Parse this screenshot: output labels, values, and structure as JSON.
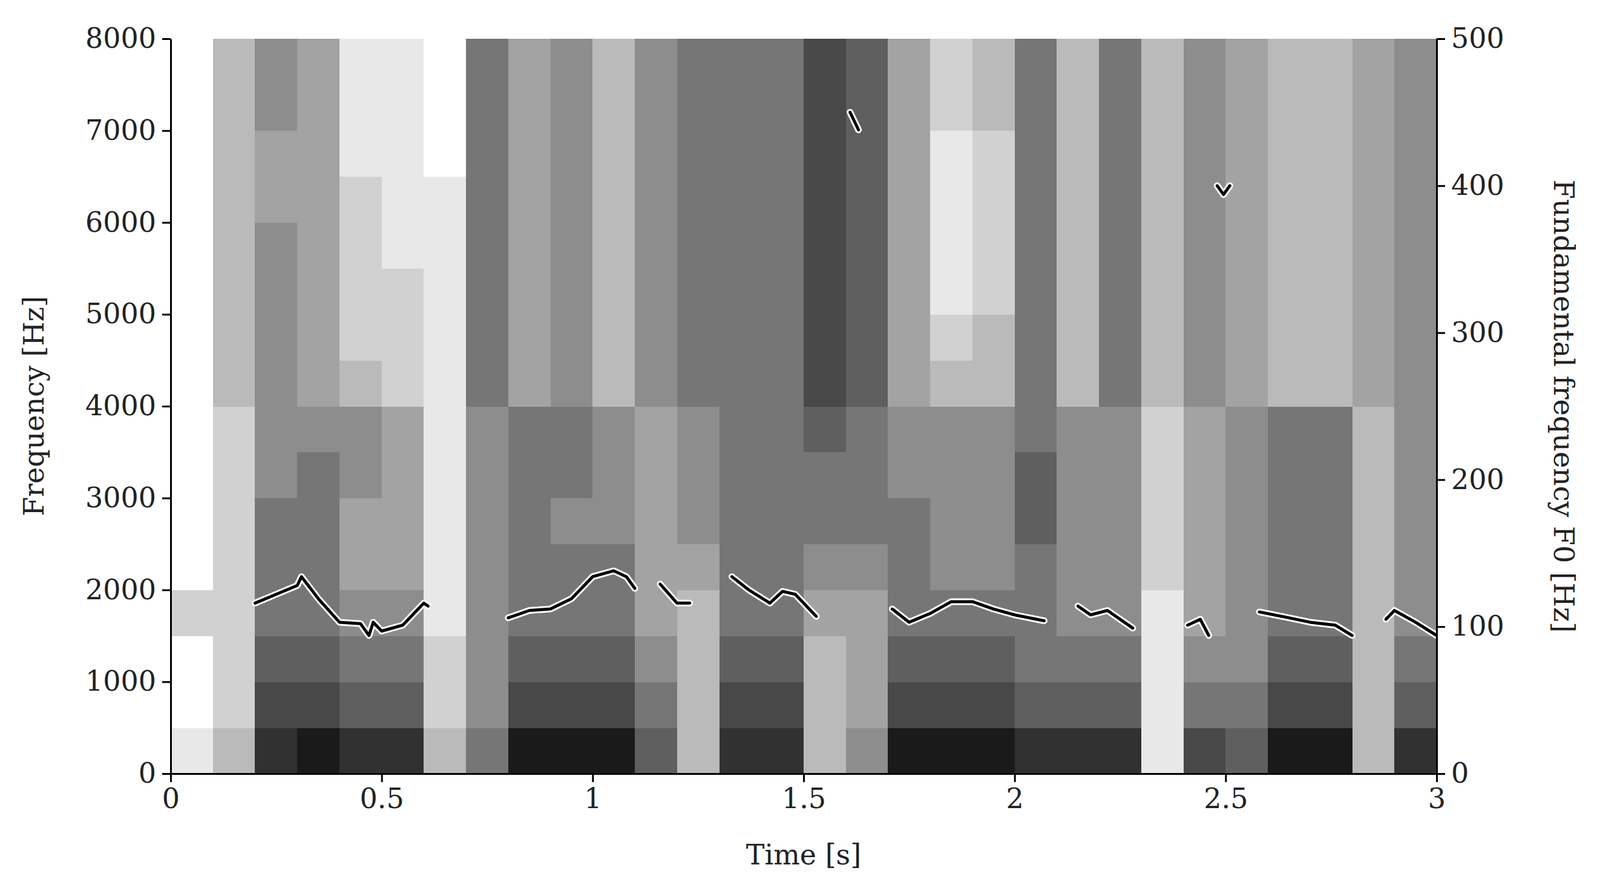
{
  "chart_data": {
    "type": "spectrogram",
    "xlabel": "Time [s]",
    "ylabel": "Frequency [Hz]",
    "y2label": "Fundamental frequency F0 [Hz]",
    "xlim": [
      0,
      3
    ],
    "xticks": [
      0,
      0.5,
      1,
      1.5,
      2,
      2.5,
      3
    ],
    "ylim": [
      0,
      8000
    ],
    "yticks": [
      0,
      1000,
      2000,
      3000,
      4000,
      5000,
      6000,
      7000,
      8000
    ],
    "y2lim": [
      0,
      500
    ],
    "y2ticks": [
      0,
      100,
      200,
      300,
      400,
      500
    ],
    "spectrogram": {
      "time_bins": [
        0,
        0.1,
        0.2,
        0.3,
        0.4,
        0.5,
        0.6,
        0.7,
        0.8,
        0.9,
        1,
        1.1,
        1.2,
        1.3,
        1.4,
        1.5,
        1.6,
        1.7,
        1.8,
        1.9,
        2,
        2.1,
        2.2,
        2.3,
        2.4,
        2.5,
        2.6,
        2.7,
        2.8,
        2.9,
        3
      ],
      "freq_bins": [
        0,
        500,
        1000,
        1500,
        2000,
        2500,
        3000,
        3500,
        4000,
        4500,
        5000,
        5500,
        6000,
        6500,
        7000,
        7500,
        8000
      ],
      "zlim": [
        0,
        10
      ],
      "z": [
        [
          1,
          0,
          0,
          2,
          0,
          0,
          0,
          0,
          0,
          0,
          0,
          0,
          0,
          0,
          0,
          0
        ],
        [
          3,
          2,
          2,
          2,
          2,
          2,
          2,
          2,
          3,
          3,
          3,
          3,
          3,
          3,
          3,
          3
        ],
        [
          9,
          8,
          7,
          6,
          6,
          6,
          5,
          5,
          5,
          5,
          5,
          5,
          4,
          4,
          5,
          5
        ],
        [
          10,
          8,
          7,
          6,
          6,
          6,
          6,
          5,
          4,
          4,
          4,
          4,
          4,
          4,
          4,
          4
        ],
        [
          9,
          7,
          6,
          5,
          4,
          4,
          5,
          5,
          3,
          2,
          2,
          2,
          2,
          1,
          1,
          1
        ],
        [
          9,
          7,
          6,
          5,
          4,
          4,
          4,
          4,
          2,
          2,
          2,
          1,
          1,
          1,
          1,
          1
        ],
        [
          3,
          2,
          2,
          1,
          1,
          1,
          1,
          1,
          1,
          1,
          1,
          1,
          1,
          0,
          0,
          0
        ],
        [
          6,
          5,
          5,
          5,
          5,
          5,
          5,
          5,
          6,
          6,
          6,
          6,
          6,
          6,
          6,
          6
        ],
        [
          10,
          8,
          7,
          6,
          6,
          6,
          6,
          6,
          4,
          4,
          4,
          4,
          4,
          4,
          4,
          4
        ],
        [
          10,
          8,
          7,
          6,
          6,
          5,
          6,
          6,
          5,
          5,
          5,
          5,
          5,
          5,
          5,
          5
        ],
        [
          10,
          8,
          7,
          6,
          6,
          5,
          5,
          5,
          3,
          3,
          3,
          3,
          3,
          3,
          3,
          3
        ],
        [
          7,
          6,
          5,
          4,
          4,
          4,
          4,
          4,
          5,
          5,
          5,
          5,
          5,
          5,
          5,
          5
        ],
        [
          3,
          3,
          3,
          3,
          4,
          5,
          5,
          5,
          6,
          6,
          6,
          6,
          6,
          6,
          6,
          6
        ],
        [
          9,
          8,
          7,
          6,
          6,
          6,
          6,
          6,
          6,
          6,
          6,
          6,
          6,
          6,
          6,
          6
        ],
        [
          9,
          8,
          7,
          6,
          6,
          6,
          6,
          6,
          6,
          6,
          6,
          6,
          6,
          6,
          6,
          6
        ],
        [
          3,
          3,
          3,
          4,
          5,
          6,
          6,
          7,
          8,
          8,
          8,
          8,
          8,
          8,
          8,
          8
        ],
        [
          5,
          4,
          4,
          4,
          5,
          6,
          6,
          6,
          7,
          7,
          7,
          7,
          7,
          7,
          7,
          7
        ],
        [
          10,
          8,
          7,
          6,
          6,
          6,
          5,
          5,
          4,
          4,
          4,
          4,
          4,
          4,
          4,
          4
        ],
        [
          10,
          8,
          7,
          6,
          5,
          5,
          5,
          5,
          3,
          2,
          1,
          1,
          1,
          1,
          2,
          2
        ],
        [
          10,
          8,
          7,
          6,
          5,
          5,
          5,
          5,
          3,
          3,
          2,
          2,
          2,
          2,
          3,
          3
        ],
        [
          9,
          7,
          6,
          6,
          6,
          7,
          7,
          6,
          6,
          6,
          6,
          6,
          6,
          6,
          6,
          6
        ],
        [
          9,
          7,
          6,
          5,
          5,
          5,
          5,
          5,
          3,
          3,
          3,
          3,
          3,
          3,
          3,
          3
        ],
        [
          9,
          7,
          6,
          5,
          5,
          5,
          5,
          5,
          6,
          6,
          6,
          6,
          6,
          6,
          6,
          6
        ],
        [
          1,
          1,
          1,
          1,
          2,
          2,
          2,
          2,
          3,
          3,
          3,
          3,
          3,
          3,
          3,
          3
        ],
        [
          8,
          6,
          5,
          4,
          4,
          4,
          4,
          4,
          5,
          5,
          5,
          5,
          5,
          5,
          5,
          5
        ],
        [
          7,
          6,
          5,
          5,
          5,
          5,
          5,
          5,
          4,
          4,
          4,
          4,
          4,
          4,
          4,
          4
        ],
        [
          10,
          8,
          7,
          6,
          6,
          6,
          6,
          6,
          3,
          3,
          3,
          3,
          3,
          3,
          3,
          3
        ],
        [
          10,
          8,
          7,
          6,
          6,
          6,
          6,
          6,
          3,
          3,
          3,
          3,
          3,
          3,
          3,
          3
        ],
        [
          3,
          3,
          3,
          3,
          3,
          3,
          3,
          3,
          4,
          4,
          4,
          4,
          4,
          4,
          4,
          4
        ],
        [
          9,
          7,
          6,
          5,
          5,
          5,
          5,
          5,
          5,
          5,
          5,
          5,
          5,
          5,
          5,
          5
        ]
      ]
    },
    "x": [
      0.2,
      0.25,
      0.3,
      0.31,
      0.35,
      0.4,
      0.45,
      0.47,
      0.48,
      0.5,
      0.55,
      0.6,
      0.61,
      null,
      0.8,
      0.85,
      0.9,
      0.95,
      1.0,
      1.05,
      1.08,
      1.1,
      null,
      1.16,
      1.2,
      1.23,
      null,
      1.33,
      1.37,
      1.42,
      1.45,
      1.48,
      1.53,
      null,
      1.61,
      1.63,
      null,
      1.71,
      1.75,
      1.8,
      1.85,
      1.9,
      1.95,
      2.0,
      2.07,
      null,
      2.15,
      2.18,
      2.22,
      2.28,
      null,
      2.41,
      2.44,
      2.46,
      null,
      2.48,
      2.495,
      2.51,
      null,
      2.58,
      2.65,
      2.7,
      2.76,
      2.8,
      null,
      2.88,
      2.9,
      2.95,
      3.0
    ],
    "series": [
      {
        "type": "line",
        "axis": "y2",
        "color": "#000000",
        "values": [
          116,
          122,
          128,
          134,
          119,
          103,
          102,
          94,
          103,
          97,
          101,
          116,
          114,
          null,
          106,
          111,
          112,
          119,
          134,
          138,
          134,
          126,
          null,
          129,
          116,
          116,
          null,
          134,
          125,
          116,
          124,
          122,
          107,
          null,
          450,
          438,
          null,
          112,
          103,
          109,
          117,
          117,
          112,
          108,
          104,
          null,
          114,
          108,
          111,
          99,
          null,
          101,
          105,
          94,
          null,
          400,
          394,
          400,
          null,
          110,
          106,
          103,
          101,
          94,
          null,
          105,
          111,
          103,
          94
        ]
      }
    ]
  }
}
